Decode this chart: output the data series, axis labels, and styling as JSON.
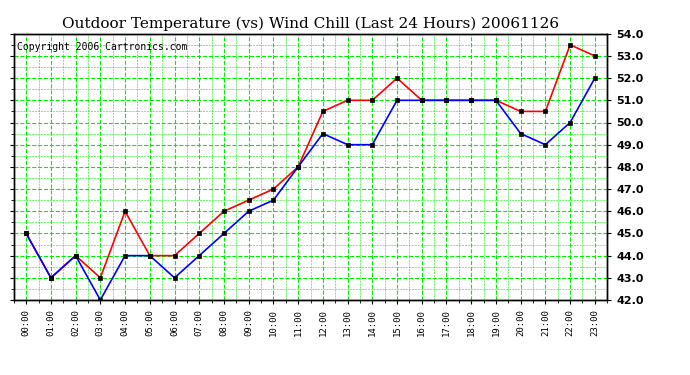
{
  "title": "Outdoor Temperature (vs) Wind Chill (Last 24 Hours) 20061126",
  "copyright": "Copyright 2006 Cartronics.com",
  "hours": [
    "00:00",
    "01:00",
    "02:00",
    "03:00",
    "04:00",
    "05:00",
    "06:00",
    "07:00",
    "08:00",
    "09:00",
    "10:00",
    "11:00",
    "12:00",
    "13:00",
    "14:00",
    "15:00",
    "16:00",
    "17:00",
    "18:00",
    "19:00",
    "20:00",
    "21:00",
    "22:00",
    "23:00"
  ],
  "temp_red": [
    45.0,
    43.0,
    44.0,
    43.0,
    46.0,
    44.0,
    44.0,
    45.0,
    46.0,
    46.5,
    47.0,
    48.0,
    50.5,
    51.0,
    51.0,
    52.0,
    51.0,
    51.0,
    51.0,
    51.0,
    50.5,
    50.5,
    53.5,
    53.0
  ],
  "wind_chill_blue": [
    45.0,
    43.0,
    44.0,
    42.0,
    44.0,
    44.0,
    43.0,
    44.0,
    45.0,
    46.0,
    46.5,
    48.0,
    49.5,
    49.0,
    49.0,
    51.0,
    51.0,
    51.0,
    51.0,
    51.0,
    49.5,
    49.0,
    50.0,
    52.0
  ],
  "ylim": [
    42.0,
    54.0
  ],
  "yticks": [
    42.0,
    43.0,
    44.0,
    45.0,
    46.0,
    47.0,
    48.0,
    49.0,
    50.0,
    51.0,
    52.0,
    53.0,
    54.0
  ],
  "bg_color": "#ffffff",
  "plot_bg_color": "#ffffff",
  "grid_color": "#00ee00",
  "red_color": "#ff0000",
  "blue_color": "#0000ff",
  "title_fontsize": 11,
  "copyright_fontsize": 7
}
